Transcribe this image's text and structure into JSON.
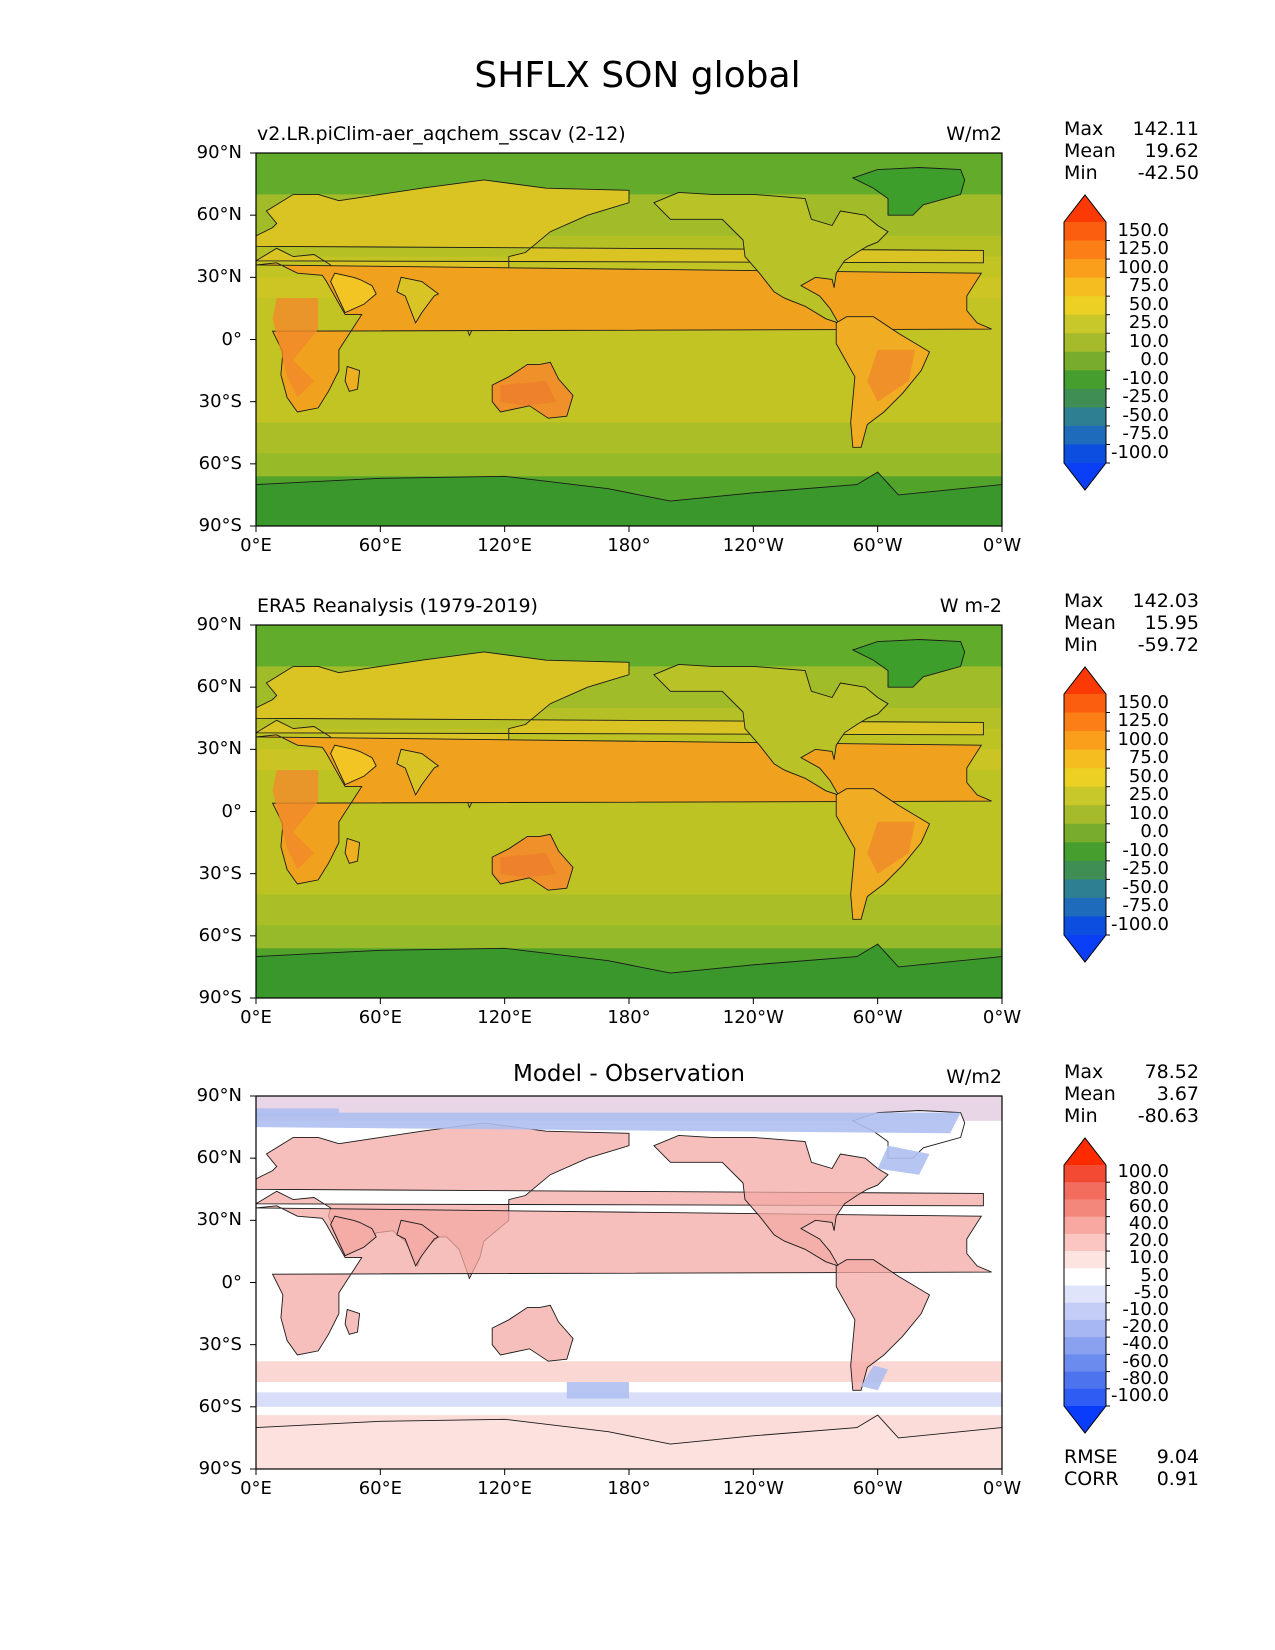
{
  "title": "SHFLX SON global",
  "colors": {
    "frame": "#000000",
    "ocean_model": "#c2c424",
    "ocean_obs": "#bec324",
    "warm_land": "#f09a1c",
    "ice": "#3aa02b",
    "diff_bg": "#ffffff",
    "diff_pos": "#f4a9a4",
    "diff_neg": "#aebff0"
  },
  "panels": [
    {
      "left_title": "v2.LR.piClim-aer_aqchem_sscav (2-12)",
      "center_title": "",
      "units": "W/m2",
      "stats": [
        {
          "label": "Max",
          "value": "142.11"
        },
        {
          "label": "Mean",
          "value": "19.62"
        },
        {
          "label": "Min",
          "value": "-42.50"
        }
      ],
      "colorbar": {
        "type": "abs",
        "ticks": [
          "150.0",
          "125.0",
          "100.0",
          "75.0",
          "50.0",
          "25.0",
          "10.0",
          "0.0",
          "-10.0",
          "-25.0",
          "-50.0",
          "-75.0",
          "-100.0"
        ]
      }
    },
    {
      "left_title": "ERA5 Reanalysis (1979-2019)",
      "center_title": "",
      "units": "W m-2",
      "stats": [
        {
          "label": "Max",
          "value": "142.03"
        },
        {
          "label": "Mean",
          "value": "15.95"
        },
        {
          "label": "Min",
          "value": "-59.72"
        }
      ],
      "colorbar": {
        "type": "abs",
        "ticks": [
          "150.0",
          "125.0",
          "100.0",
          "75.0",
          "50.0",
          "25.0",
          "10.0",
          "0.0",
          "-10.0",
          "-25.0",
          "-50.0",
          "-75.0",
          "-100.0"
        ]
      }
    },
    {
      "left_title": "",
      "center_title": "Model - Observation",
      "units": "W/m2",
      "stats": [
        {
          "label": "Max",
          "value": "78.52"
        },
        {
          "label": "Mean",
          "value": "3.67"
        },
        {
          "label": "Min",
          "value": "-80.63"
        }
      ],
      "colorbar": {
        "type": "diff",
        "ticks": [
          "100.0",
          "80.0",
          "60.0",
          "40.0",
          "20.0",
          "10.0",
          "5.0",
          "-5.0",
          "-10.0",
          "-20.0",
          "-40.0",
          "-60.0",
          "-80.0",
          "-100.0"
        ]
      },
      "metrics": [
        {
          "label": "RMSE",
          "value": "9.04"
        },
        {
          "label": "CORR",
          "value": "0.91"
        }
      ]
    }
  ],
  "lat_ticks": [
    "90°N",
    "60°N",
    "30°N",
    "0°",
    "30°S",
    "60°S",
    "90°S"
  ],
  "lon_ticks": [
    "0°E",
    "60°E",
    "120°E",
    "180°",
    "120°W",
    "60°W",
    "0°W"
  ]
}
